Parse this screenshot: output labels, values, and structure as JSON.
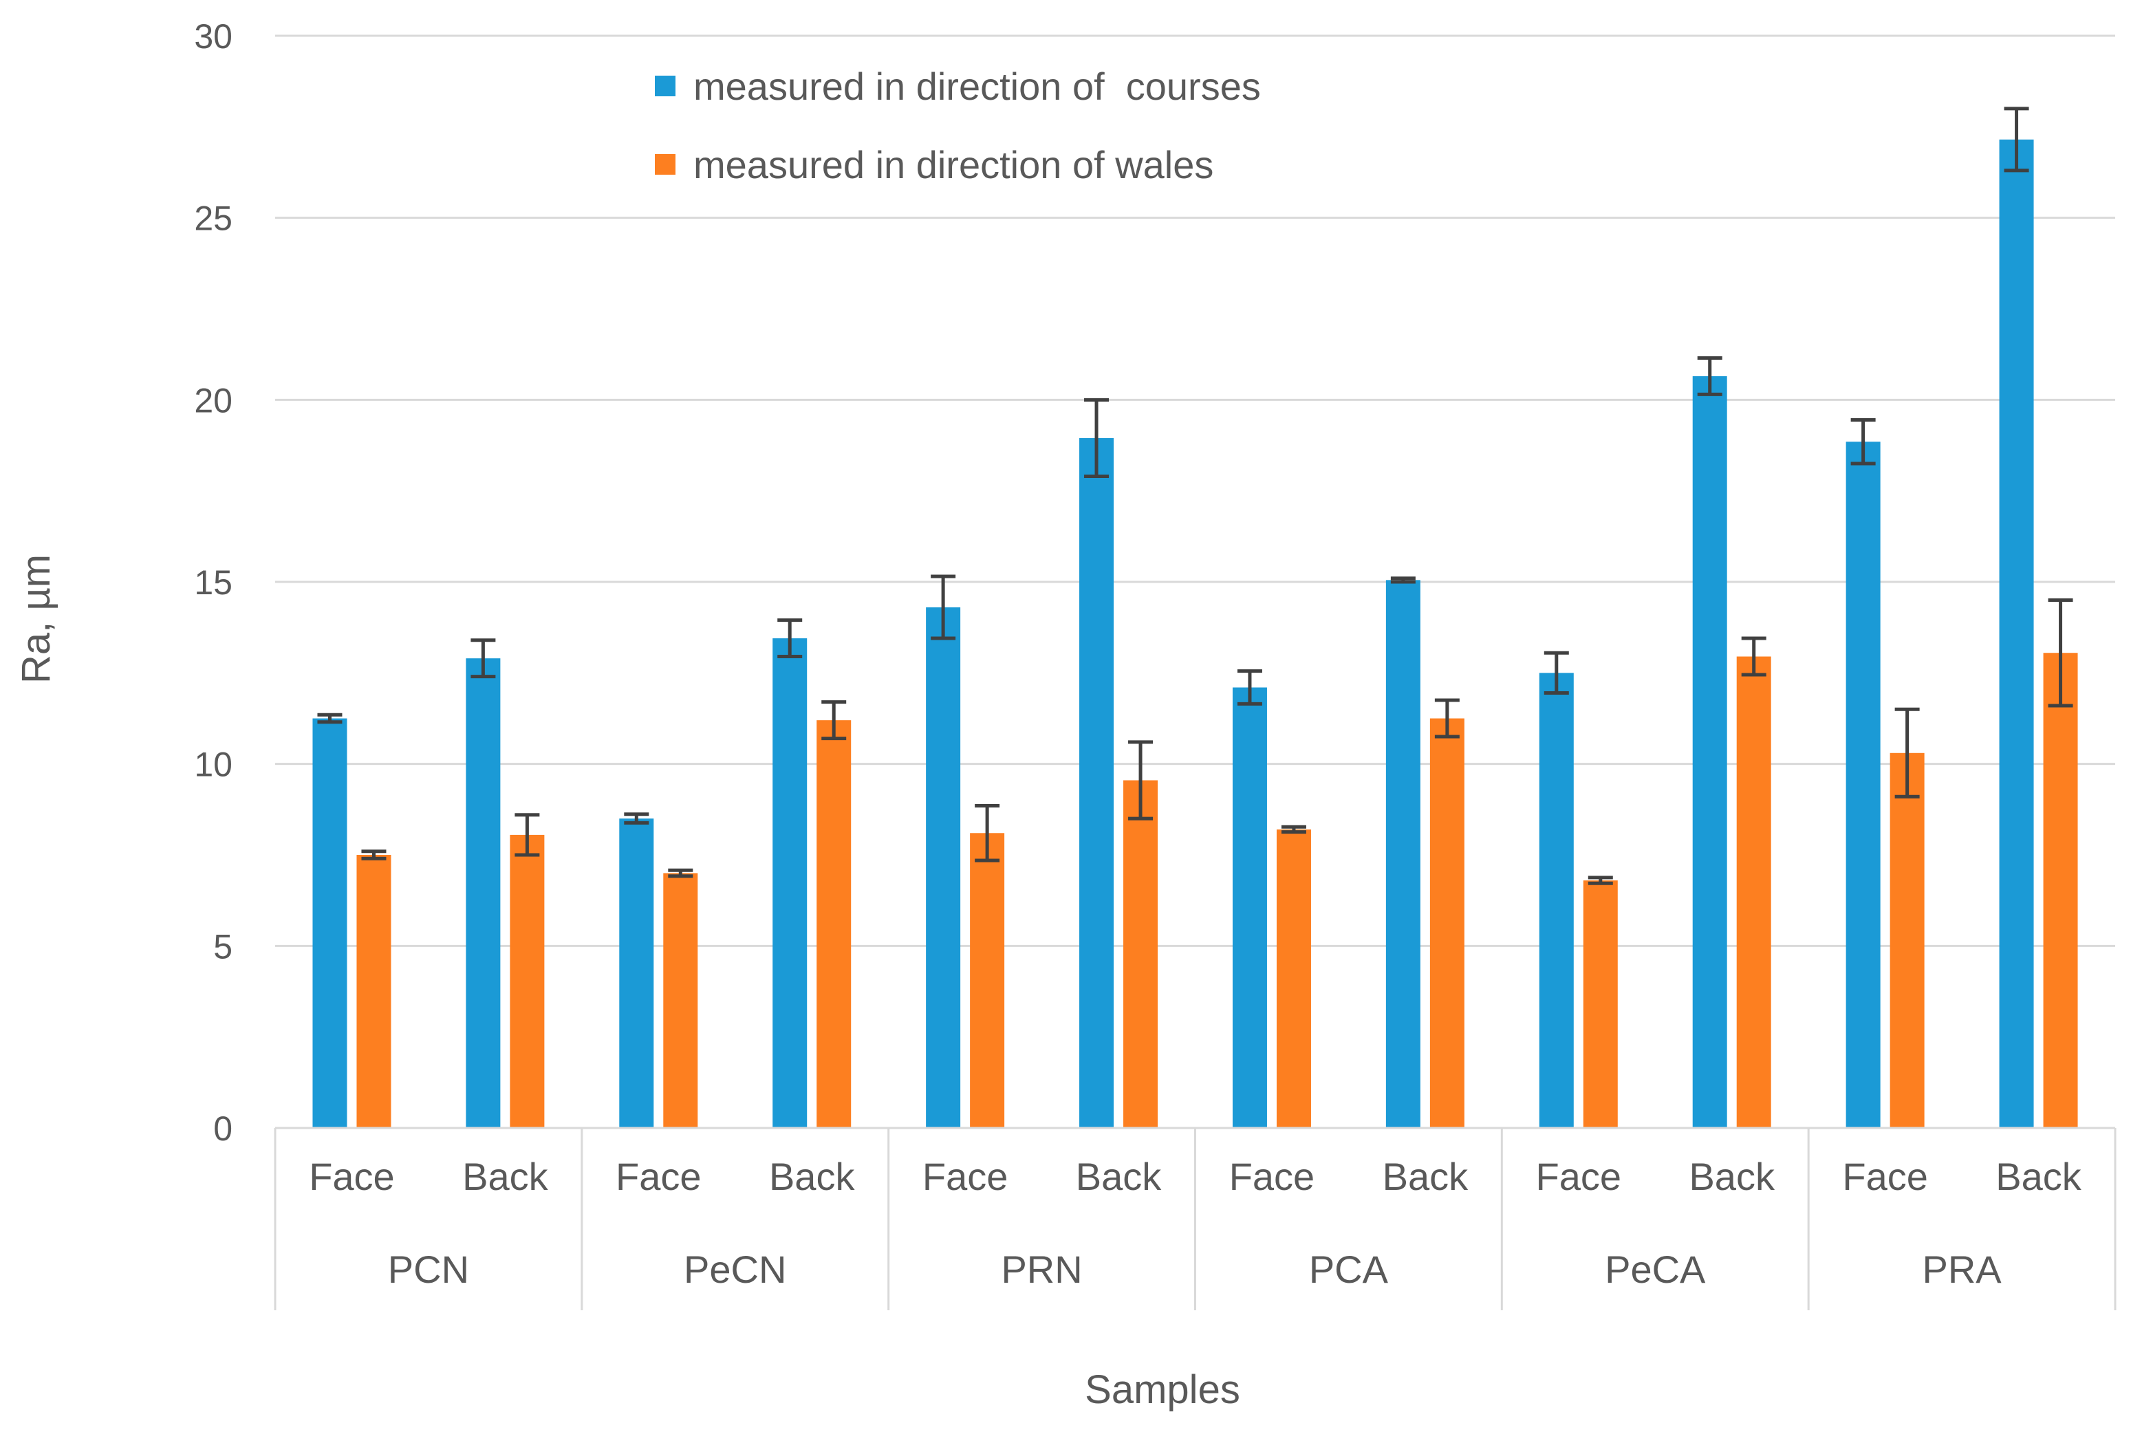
{
  "chart_data": {
    "type": "bar",
    "title": "",
    "xlabel": "Samples",
    "ylabel": "Ra, µm",
    "ylim": [
      0,
      30
    ],
    "yticks": [
      0,
      5,
      10,
      15,
      20,
      25,
      30
    ],
    "grid": true,
    "legend_position": "top-center",
    "groups": [
      {
        "label": "PCN",
        "subcategories": [
          "Face",
          "Back"
        ]
      },
      {
        "label": "PeCN",
        "subcategories": [
          "Face",
          "Back"
        ]
      },
      {
        "label": "PRN",
        "subcategories": [
          "Face",
          "Back"
        ]
      },
      {
        "label": "PCA",
        "subcategories": [
          "Face",
          "Back"
        ]
      },
      {
        "label": "PeCA",
        "subcategories": [
          "Face",
          "Back"
        ]
      },
      {
        "label": "PRA",
        "subcategories": [
          "Face",
          "Back"
        ]
      }
    ],
    "categories": [
      "PCN Face",
      "PCN Back",
      "PeCN Face",
      "PeCN Back",
      "PRN Face",
      "PRN Back",
      "PCA Face",
      "PCA Back",
      "PeCA Face",
      "PeCA Back",
      "PRA Face",
      "PRA Back"
    ],
    "series": [
      {
        "name": "measured in direction of  courses",
        "color": "#1b9ad6",
        "values": [
          11.25,
          12.9,
          8.5,
          13.45,
          14.3,
          18.95,
          12.1,
          15.05,
          12.5,
          20.65,
          18.85,
          27.15
        ],
        "errors": [
          0.1,
          0.5,
          0.12,
          0.5,
          0.85,
          1.05,
          0.45,
          0.05,
          0.55,
          0.5,
          0.6,
          0.85
        ]
      },
      {
        "name": "measured in direction of wales",
        "color": "#fd7f20",
        "values": [
          7.5,
          8.05,
          7.0,
          11.2,
          8.1,
          9.55,
          8.2,
          11.25,
          6.8,
          12.95,
          10.3,
          13.05
        ],
        "errors": [
          0.1,
          0.55,
          0.08,
          0.5,
          0.75,
          1.05,
          0.07,
          0.5,
          0.08,
          0.5,
          1.2,
          1.45
        ]
      }
    ]
  }
}
